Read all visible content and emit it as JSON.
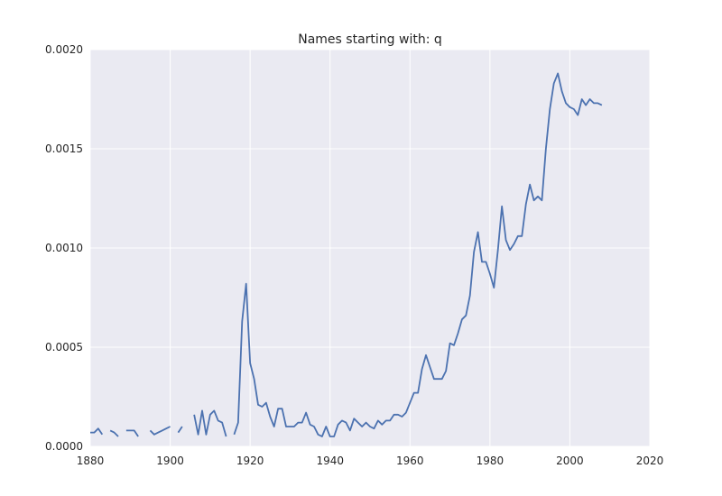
{
  "chart_data": {
    "type": "line",
    "title": "Names starting with: q",
    "xlabel": "",
    "ylabel": "",
    "xlim": [
      1880,
      2020
    ],
    "ylim": [
      0,
      0.002
    ],
    "xticks": [
      "1880",
      "1900",
      "1920",
      "1940",
      "1960",
      "1980",
      "2000",
      "2020"
    ],
    "yticks": [
      "0.0000",
      "0.0005",
      "0.0010",
      "0.0015",
      "0.0020"
    ],
    "grid": true,
    "legend": "none",
    "colors": {
      "background": "#eaeaf2",
      "grid": "#ffffff",
      "line": "#4c72b0"
    },
    "series": [
      {
        "x": [
          1880,
          1881,
          1882,
          1883,
          1884,
          1885,
          1886,
          1887,
          1888,
          1889,
          1890,
          1891,
          1892,
          1893,
          1894,
          1895,
          1896,
          1897,
          1898,
          1899,
          1900,
          1901,
          1902,
          1903,
          1904,
          1905,
          1906,
          1907,
          1908,
          1909,
          1910,
          1911,
          1912,
          1913,
          1914,
          1915,
          1916,
          1917,
          1918,
          1919,
          1920,
          1921,
          1922,
          1923,
          1924,
          1925,
          1926,
          1927,
          1928,
          1929,
          1930,
          1931,
          1932,
          1933,
          1934,
          1935,
          1936,
          1937,
          1938,
          1939,
          1940,
          1941,
          1942,
          1943,
          1944,
          1945,
          1946,
          1947,
          1948,
          1949,
          1950,
          1951,
          1952,
          1953,
          1954,
          1955,
          1956,
          1957,
          1958,
          1959,
          1960,
          1961,
          1962,
          1963,
          1964,
          1965,
          1966,
          1967,
          1968,
          1969,
          1970,
          1971,
          1972,
          1973,
          1974,
          1975,
          1976,
          1977,
          1978,
          1979,
          1980,
          1981,
          1982,
          1983,
          1984,
          1985,
          1986,
          1987,
          1988,
          1989,
          1990,
          1991,
          1992,
          1993,
          1994,
          1995,
          1996,
          1997,
          1998,
          1999,
          2000,
          2001,
          2002,
          2003,
          2004,
          2005,
          2006,
          2007,
          2008
        ],
        "y": [
          7e-05,
          7e-05,
          9e-05,
          6e-05,
          null,
          8e-05,
          7e-05,
          5e-05,
          null,
          8e-05,
          8e-05,
          8e-05,
          5e-05,
          null,
          null,
          8e-05,
          6e-05,
          7e-05,
          8e-05,
          9e-05,
          0.0001,
          null,
          7e-05,
          0.0001,
          null,
          null,
          0.00016,
          6e-05,
          0.00018,
          6e-05,
          0.00016,
          0.00018,
          0.00013,
          0.00012,
          5e-05,
          null,
          6e-05,
          0.00012,
          0.00063,
          0.00082,
          0.00042,
          0.00034,
          0.00021,
          0.0002,
          0.00022,
          0.00015,
          0.0001,
          0.00019,
          0.00019,
          0.0001,
          0.0001,
          0.0001,
          0.00012,
          0.00012,
          0.00017,
          0.00011,
          0.0001,
          6e-05,
          5e-05,
          0.0001,
          5e-05,
          5e-05,
          0.00011,
          0.00013,
          0.00012,
          8e-05,
          0.00014,
          0.00012,
          0.0001,
          0.00012,
          0.0001,
          9e-05,
          0.00013,
          0.00011,
          0.00013,
          0.00013,
          0.00016,
          0.00016,
          0.00015,
          0.00017,
          0.00022,
          0.00027,
          0.00027,
          0.00039,
          0.00046,
          0.0004,
          0.00034,
          0.00034,
          0.00034,
          0.00038,
          0.00052,
          0.00051,
          0.00057,
          0.00064,
          0.00066,
          0.00076,
          0.00098,
          0.00108,
          0.00093,
          0.00093,
          0.00087,
          0.0008,
          0.00099,
          0.00121,
          0.00104,
          0.00099,
          0.00102,
          0.00106,
          0.00106,
          0.00122,
          0.00132,
          0.00124,
          0.00126,
          0.00124,
          0.0015,
          0.0017,
          0.00183,
          0.00188,
          0.00179,
          0.00173,
          0.00171,
          0.0017,
          0.00167,
          0.00175,
          0.00172,
          0.00175,
          0.00173,
          0.00173,
          0.00172
        ]
      }
    ]
  }
}
